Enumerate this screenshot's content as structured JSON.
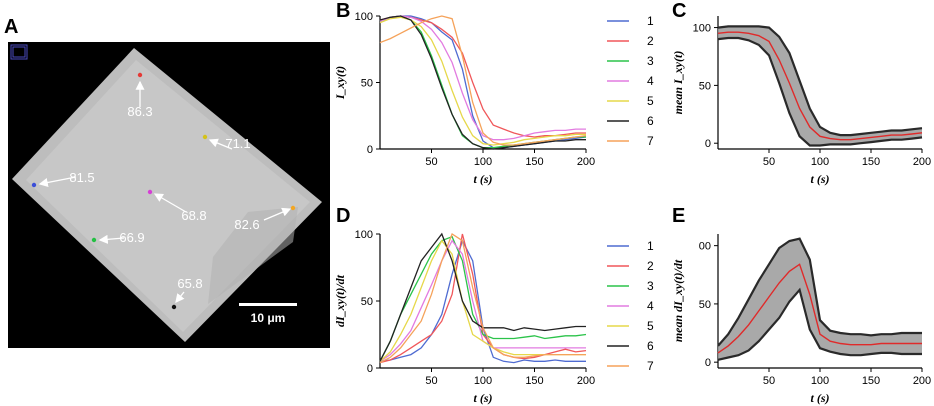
{
  "panels": {
    "a": "A",
    "b": "B",
    "c": "C",
    "d": "D",
    "e": "E"
  },
  "micrograph": {
    "scale_bar": "10 μm",
    "points": [
      {
        "label": "86.3",
        "color": "#e53935"
      },
      {
        "label": "71.1",
        "color": "#d4c21a"
      },
      {
        "label": "81.5",
        "color": "#3b4ed8"
      },
      {
        "label": "68.8",
        "color": "#d63fd6"
      },
      {
        "label": "82.6",
        "color": "#f2a623"
      },
      {
        "label": "66.9",
        "color": "#23c043"
      },
      {
        "label": "65.8",
        "color": "#111111"
      }
    ]
  },
  "legend": {
    "series": [
      {
        "name": "1",
        "color": "#4f6bd1"
      },
      {
        "name": "2",
        "color": "#f0575a"
      },
      {
        "name": "3",
        "color": "#2bc34a"
      },
      {
        "name": "4",
        "color": "#e27be0"
      },
      {
        "name": "5",
        "color": "#e6d84a"
      },
      {
        "name": "6",
        "color": "#222222"
      },
      {
        "name": "7",
        "color": "#f5a25a"
      }
    ]
  },
  "chart_data": [
    {
      "id": "B",
      "type": "line",
      "ylabel": "I_xy(t)",
      "xlabel": "t (s)",
      "xlim": [
        0,
        200
      ],
      "ylim": [
        0,
        100
      ],
      "xticks": [
        50,
        100,
        150,
        200
      ],
      "yticks": [
        0,
        50,
        100
      ],
      "x": [
        0,
        10,
        20,
        30,
        40,
        50,
        60,
        70,
        80,
        90,
        100,
        110,
        120,
        130,
        140,
        150,
        160,
        170,
        180,
        190,
        200
      ],
      "series": [
        {
          "name": "1",
          "values": [
            96,
            99,
            100,
            100,
            98,
            95,
            88,
            82,
            60,
            25,
            6,
            1,
            1,
            2,
            3,
            4,
            5,
            6,
            7,
            8,
            9
          ]
        },
        {
          "name": "2",
          "values": [
            97,
            99,
            100,
            99,
            97,
            95,
            90,
            84,
            72,
            50,
            30,
            18,
            15,
            12,
            10,
            9,
            10,
            10,
            11,
            12,
            12
          ]
        },
        {
          "name": "3",
          "values": [
            96,
            99,
            100,
            97,
            88,
            70,
            48,
            26,
            10,
            4,
            1,
            1,
            2,
            3,
            4,
            5,
            6,
            7,
            8,
            9,
            9
          ]
        },
        {
          "name": "4",
          "values": [
            96,
            99,
            100,
            99,
            96,
            90,
            80,
            65,
            42,
            22,
            10,
            7,
            7,
            8,
            10,
            12,
            13,
            14,
            14,
            15,
            15
          ]
        },
        {
          "name": "5",
          "values": [
            95,
            98,
            99,
            97,
            92,
            82,
            66,
            44,
            24,
            10,
            4,
            3,
            4,
            5,
            7,
            8,
            9,
            10,
            10,
            11,
            11
          ]
        },
        {
          "name": "6",
          "values": [
            97,
            99,
            100,
            97,
            86,
            68,
            46,
            26,
            11,
            4,
            1,
            0,
            1,
            2,
            3,
            4,
            5,
            6,
            6,
            7,
            7
          ]
        },
        {
          "name": "7",
          "values": [
            80,
            83,
            87,
            91,
            95,
            98,
            100,
            98,
            70,
            35,
            12,
            5,
            3,
            3,
            4,
            5,
            6,
            7,
            8,
            9,
            10
          ]
        }
      ]
    },
    {
      "id": "C",
      "type": "line",
      "ylabel": "mean I_xy(t)",
      "xlabel": "t (s)",
      "xlim": [
        0,
        200
      ],
      "ylim": [
        -5,
        110
      ],
      "xticks": [
        50,
        100,
        150,
        200
      ],
      "yticks": [
        0,
        50,
        100
      ],
      "x": [
        0,
        10,
        20,
        30,
        40,
        50,
        60,
        70,
        80,
        90,
        100,
        110,
        120,
        130,
        140,
        150,
        160,
        170,
        180,
        190,
        200
      ],
      "mean": [
        95,
        96,
        96,
        95,
        93,
        88,
        72,
        52,
        30,
        14,
        6,
        4,
        3,
        3,
        4,
        5,
        6,
        7,
        7,
        8,
        9
      ],
      "std": [
        5,
        5,
        5,
        6,
        8,
        12,
        20,
        26,
        24,
        16,
        8,
        5,
        4,
        4,
        4,
        4,
        4,
        4,
        4,
        4,
        4
      ]
    },
    {
      "id": "D",
      "type": "line",
      "ylabel": "dI_xy(t)/dt",
      "xlabel": "t (s)",
      "xlim": [
        0,
        200
      ],
      "ylim": [
        0,
        100
      ],
      "xticks": [
        50,
        100,
        150,
        200
      ],
      "yticks": [
        0,
        50,
        100
      ],
      "x": [
        0,
        10,
        20,
        30,
        40,
        50,
        60,
        70,
        80,
        90,
        100,
        110,
        120,
        130,
        140,
        150,
        160,
        170,
        180,
        190,
        200
      ],
      "series": [
        {
          "name": "1",
          "values": [
            5,
            6,
            8,
            10,
            15,
            25,
            40,
            70,
            95,
            80,
            30,
            8,
            5,
            4,
            6,
            5,
            5,
            6,
            5,
            5,
            5
          ]
        },
        {
          "name": "2",
          "values": [
            4,
            6,
            10,
            15,
            20,
            25,
            35,
            55,
            100,
            70,
            25,
            15,
            10,
            8,
            7,
            8,
            10,
            12,
            14,
            12,
            13
          ]
        },
        {
          "name": "3",
          "values": [
            5,
            20,
            40,
            55,
            70,
            85,
            95,
            98,
            80,
            40,
            25,
            22,
            22,
            22,
            23,
            24,
            22,
            23,
            24,
            24,
            25
          ]
        },
        {
          "name": "4",
          "values": [
            5,
            10,
            18,
            28,
            45,
            62,
            80,
            95,
            85,
            50,
            20,
            15,
            15,
            15,
            15,
            15,
            15,
            15,
            15,
            15,
            15
          ]
        },
        {
          "name": "5",
          "values": [
            5,
            12,
            25,
            40,
            60,
            80,
            95,
            85,
            50,
            25,
            20,
            15,
            12,
            10,
            10,
            10,
            10,
            10,
            10,
            10,
            10
          ]
        },
        {
          "name": "6",
          "values": [
            5,
            20,
            40,
            60,
            80,
            90,
            100,
            80,
            50,
            35,
            30,
            30,
            30,
            28,
            30,
            29,
            28,
            29,
            30,
            31,
            31
          ]
        },
        {
          "name": "7",
          "values": [
            4,
            8,
            15,
            25,
            35,
            55,
            80,
            100,
            95,
            60,
            30,
            15,
            10,
            8,
            8,
            9,
            10,
            10,
            10,
            10,
            10
          ]
        }
      ]
    },
    {
      "id": "E",
      "type": "line",
      "ylabel": "mean dI_xy(t)/dt",
      "xlabel": "t (s)",
      "xlim": [
        0,
        200
      ],
      "ylim": [
        -5,
        110
      ],
      "xticks": [
        50,
        100,
        150,
        200
      ],
      "yticks": [
        0,
        50
      ],
      "ytick_top_label": "00",
      "x": [
        0,
        10,
        20,
        30,
        40,
        50,
        60,
        70,
        80,
        90,
        100,
        110,
        120,
        130,
        140,
        150,
        160,
        170,
        180,
        190,
        200
      ],
      "mean": [
        8,
        14,
        22,
        32,
        44,
        56,
        68,
        78,
        84,
        58,
        24,
        18,
        16,
        15,
        15,
        15,
        16,
        16,
        16,
        16,
        16
      ],
      "std": [
        6,
        10,
        16,
        22,
        26,
        28,
        30,
        26,
        22,
        30,
        12,
        9,
        9,
        9,
        9,
        8,
        8,
        8,
        9,
        9,
        9
      ]
    }
  ]
}
